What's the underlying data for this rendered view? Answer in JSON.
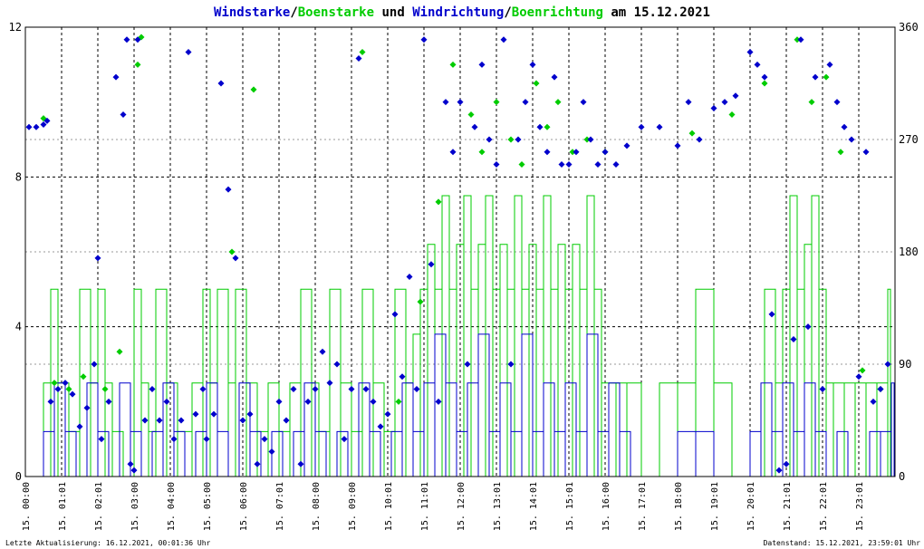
{
  "chart_data": {
    "type": "line",
    "title": {
      "part1": "Windstarke",
      "sep1": "/",
      "part2": "Boenstarke",
      "part3": " und ",
      "part4": "Windrichtung",
      "sep2": "/",
      "part5": "Boenrichtung",
      "part6": " am 15.12.2021"
    },
    "y_left": {
      "min": 0,
      "max": 12,
      "ticks": [
        "0",
        "4",
        "8",
        "12"
      ],
      "tick_values": [
        0,
        4,
        8,
        12
      ]
    },
    "y_right": {
      "min": 0,
      "max": 360,
      "ticks": [
        "0",
        "90",
        "180",
        "270",
        "360"
      ],
      "tick_values": [
        0,
        90,
        180,
        270,
        360
      ]
    },
    "x_range_hours": [
      0,
      24
    ],
    "x_ticks": [
      {
        "h": 0,
        "label": "15. 00:00"
      },
      {
        "h": 1,
        "label": "15. 01:01"
      },
      {
        "h": 2,
        "label": "15. 02:01"
      },
      {
        "h": 3,
        "label": "15. 03:00"
      },
      {
        "h": 4,
        "label": "15. 04:00"
      },
      {
        "h": 5,
        "label": "15. 05:00"
      },
      {
        "h": 6,
        "label": "15. 06:00"
      },
      {
        "h": 7,
        "label": "15. 07:01"
      },
      {
        "h": 8,
        "label": "15. 08:00"
      },
      {
        "h": 9,
        "label": "15. 09:00"
      },
      {
        "h": 10,
        "label": "15. 10:01"
      },
      {
        "h": 11,
        "label": "15. 11:01"
      },
      {
        "h": 12,
        "label": "15. 12:00"
      },
      {
        "h": 13,
        "label": "15. 13:01"
      },
      {
        "h": 14,
        "label": "15. 14:01"
      },
      {
        "h": 15,
        "label": "15. 15:01"
      },
      {
        "h": 16,
        "label": "15. 16:00"
      },
      {
        "h": 17,
        "label": "15. 17:01"
      },
      {
        "h": 18,
        "label": "15. 18:00"
      },
      {
        "h": 19,
        "label": "15. 19:01"
      },
      {
        "h": 20,
        "label": "15. 20:01"
      },
      {
        "h": 21,
        "label": "15. 21:01"
      },
      {
        "h": 22,
        "label": "15. 22:01"
      },
      {
        "h": 23,
        "label": "15. 23:01"
      }
    ],
    "grid": true,
    "colors": {
      "wind": "#0000cc",
      "gust": "#00cc00",
      "grid": "#000000"
    },
    "series": [
      {
        "key": "gust_speed",
        "axis": "left",
        "style": "step-line",
        "color": "#00cc00",
        "x": [
          0.5,
          0.7,
          0.9,
          1.2,
          1.5,
          1.8,
          2.0,
          2.2,
          2.4,
          2.7,
          3.0,
          3.2,
          3.4,
          3.6,
          3.9,
          4.2,
          4.6,
          4.9,
          5.1,
          5.3,
          5.6,
          5.8,
          6.1,
          6.4,
          6.7,
          7.0,
          7.3,
          7.6,
          7.9,
          8.1,
          8.4,
          8.7,
          9.0,
          9.3,
          9.6,
          9.9,
          10.2,
          10.5,
          10.7,
          10.9,
          11.1,
          11.3,
          11.5,
          11.7,
          11.9,
          12.1,
          12.3,
          12.5,
          12.7,
          12.9,
          13.1,
          13.3,
          13.5,
          13.7,
          13.9,
          14.1,
          14.3,
          14.5,
          14.7,
          14.9,
          15.1,
          15.3,
          15.5,
          15.7,
          15.9,
          16.1,
          16.3,
          16.6,
          17.0,
          17.5,
          18.0,
          18.5,
          19.0,
          19.5,
          20.0,
          20.4,
          20.7,
          20.9,
          21.1,
          21.3,
          21.5,
          21.7,
          21.9,
          22.1,
          22.3,
          22.6,
          22.9,
          23.2,
          23.5,
          23.8
        ],
        "values": [
          2.5,
          5.0,
          2.5,
          1.2,
          5.0,
          2.5,
          5.0,
          2.5,
          1.2,
          0.0,
          5.0,
          2.5,
          1.2,
          5.0,
          2.5,
          1.2,
          2.5,
          5.0,
          2.5,
          5.0,
          2.5,
          5.0,
          2.5,
          1.2,
          2.5,
          1.2,
          2.5,
          5.0,
          2.5,
          1.2,
          5.0,
          2.5,
          1.2,
          5.0,
          2.5,
          1.2,
          5.0,
          2.5,
          3.8,
          5.0,
          6.2,
          5.0,
          7.5,
          5.0,
          6.2,
          7.5,
          5.0,
          6.2,
          7.5,
          5.0,
          6.2,
          5.0,
          7.5,
          5.0,
          6.2,
          5.0,
          7.5,
          5.0,
          6.2,
          5.0,
          6.2,
          5.0,
          7.5,
          5.0,
          2.5,
          2.5,
          2.5,
          2.5,
          0.0,
          2.5,
          2.5,
          5.0,
          2.5,
          0.0,
          0.0,
          5.0,
          2.5,
          5.0,
          7.5,
          5.0,
          6.2,
          7.5,
          5.0,
          2.5,
          2.5,
          2.5,
          2.5,
          2.5,
          2.5,
          5.0
        ]
      },
      {
        "key": "wind_speed",
        "axis": "left",
        "style": "step-line",
        "color": "#0000cc",
        "x": [
          0.5,
          0.8,
          1.1,
          1.4,
          1.7,
          2.0,
          2.3,
          2.6,
          2.9,
          3.2,
          3.5,
          3.8,
          4.1,
          4.4,
          4.7,
          5.0,
          5.3,
          5.6,
          5.9,
          6.2,
          6.5,
          6.8,
          7.1,
          7.4,
          7.7,
          8.0,
          8.3,
          8.6,
          8.9,
          9.2,
          9.5,
          9.8,
          10.1,
          10.4,
          10.7,
          11.0,
          11.3,
          11.6,
          11.9,
          12.2,
          12.5,
          12.8,
          13.1,
          13.4,
          13.7,
          14.0,
          14.3,
          14.6,
          14.9,
          15.2,
          15.5,
          15.8,
          16.1,
          16.4,
          16.7,
          17.0,
          17.5,
          18.0,
          18.5,
          19.0,
          19.5,
          20.0,
          20.3,
          20.6,
          20.9,
          21.2,
          21.5,
          21.8,
          22.1,
          22.4,
          22.7,
          23.0,
          23.3,
          23.6,
          23.9
        ],
        "values": [
          1.2,
          2.5,
          1.2,
          0.0,
          2.5,
          1.2,
          0.0,
          2.5,
          1.2,
          0.0,
          1.2,
          2.5,
          1.2,
          0.0,
          1.2,
          2.5,
          1.2,
          0.0,
          2.5,
          1.2,
          0.0,
          1.2,
          0.0,
          1.2,
          2.5,
          1.2,
          0.0,
          1.2,
          0.0,
          2.5,
          1.2,
          0.0,
          1.2,
          2.5,
          1.2,
          2.5,
          3.8,
          2.5,
          1.2,
          2.5,
          3.8,
          1.2,
          2.5,
          1.2,
          3.8,
          1.2,
          2.5,
          1.2,
          2.5,
          1.2,
          3.8,
          1.2,
          2.5,
          1.2,
          0.0,
          0.0,
          0.0,
          1.2,
          1.2,
          0.0,
          0.0,
          1.2,
          2.5,
          1.2,
          2.5,
          1.2,
          2.5,
          1.2,
          0.0,
          1.2,
          0.0,
          0.0,
          1.2,
          1.2,
          2.5
        ]
      },
      {
        "key": "gust_direction",
        "axis": "right",
        "style": "scatter",
        "color": "#00cc00",
        "x": [
          0.5,
          0.8,
          1.2,
          1.6,
          2.2,
          2.6,
          3.1,
          3.2,
          5.7,
          6.3,
          9.3,
          10.3,
          10.9,
          11.4,
          11.8,
          12.3,
          12.6,
          13.0,
          13.4,
          13.7,
          14.1,
          14.4,
          14.7,
          15.1,
          15.5,
          16.0,
          18.4,
          19.5,
          20.4,
          21.3,
          21.7,
          22.1,
          22.5,
          23.1,
          23.6
        ],
        "values": [
          287,
          75,
          70,
          80,
          70,
          100,
          330,
          352,
          180,
          310,
          340,
          60,
          140,
          220,
          330,
          290,
          260,
          300,
          270,
          250,
          315,
          280,
          300,
          260,
          270,
          260,
          275,
          290,
          315,
          350,
          300,
          320,
          260,
          85,
          70
        ]
      },
      {
        "key": "wind_direction",
        "axis": "right",
        "style": "scatter",
        "color": "#0000cc",
        "x": [
          0.1,
          0.3,
          0.5,
          0.6,
          0.7,
          0.9,
          1.1,
          1.3,
          1.5,
          1.7,
          1.9,
          2.0,
          2.1,
          2.3,
          2.5,
          2.7,
          2.8,
          2.9,
          3.0,
          3.1,
          3.3,
          3.5,
          3.7,
          3.9,
          4.1,
          4.3,
          4.5,
          4.7,
          4.9,
          5.0,
          5.2,
          5.4,
          5.6,
          5.8,
          6.0,
          6.2,
          6.4,
          6.6,
          6.8,
          7.0,
          7.2,
          7.4,
          7.6,
          7.8,
          8.0,
          8.2,
          8.4,
          8.6,
          8.8,
          9.0,
          9.2,
          9.4,
          9.6,
          9.8,
          10.0,
          10.2,
          10.4,
          10.6,
          10.8,
          11.0,
          11.2,
          11.4,
          11.6,
          11.8,
          12.0,
          12.2,
          12.4,
          12.6,
          12.8,
          13.0,
          13.2,
          13.4,
          13.6,
          13.8,
          14.0,
          14.2,
          14.4,
          14.6,
          14.8,
          15.0,
          15.2,
          15.4,
          15.6,
          15.8,
          16.0,
          16.3,
          16.6,
          17.0,
          17.5,
          18.0,
          18.3,
          18.6,
          19.0,
          19.3,
          19.6,
          20.0,
          20.2,
          20.4,
          20.6,
          20.8,
          21.0,
          21.2,
          21.4,
          21.6,
          21.8,
          22.0,
          22.2,
          22.4,
          22.6,
          22.8,
          23.0,
          23.2,
          23.4,
          23.6,
          23.8
        ],
        "values": [
          280,
          280,
          282,
          285,
          60,
          70,
          75,
          66,
          40,
          55,
          90,
          175,
          30,
          60,
          320,
          290,
          350,
          10,
          5,
          350,
          45,
          70,
          45,
          60,
          30,
          45,
          340,
          50,
          70,
          30,
          50,
          315,
          230,
          175,
          45,
          50,
          10,
          30,
          20,
          60,
          45,
          70,
          10,
          60,
          70,
          100,
          75,
          90,
          30,
          70,
          335,
          70,
          60,
          40,
          50,
          130,
          80,
          160,
          70,
          350,
          170,
          60,
          300,
          260,
          300,
          90,
          280,
          330,
          270,
          250,
          350,
          90,
          270,
          300,
          330,
          280,
          260,
          320,
          250,
          250,
          260,
          300,
          270,
          250,
          260,
          250,
          265,
          280,
          280,
          265,
          300,
          270,
          295,
          300,
          305,
          340,
          330,
          320,
          130,
          5,
          10,
          110,
          350,
          120,
          320,
          70,
          330,
          300,
          280,
          270,
          80,
          260,
          60,
          70,
          90
        ]
      }
    ],
    "footer_left": "Letzte Aktualisierung: 16.12.2021, 00:01:36 Uhr",
    "footer_right": "Datenstand: 15.12.2021, 23:59:01 Uhr"
  }
}
